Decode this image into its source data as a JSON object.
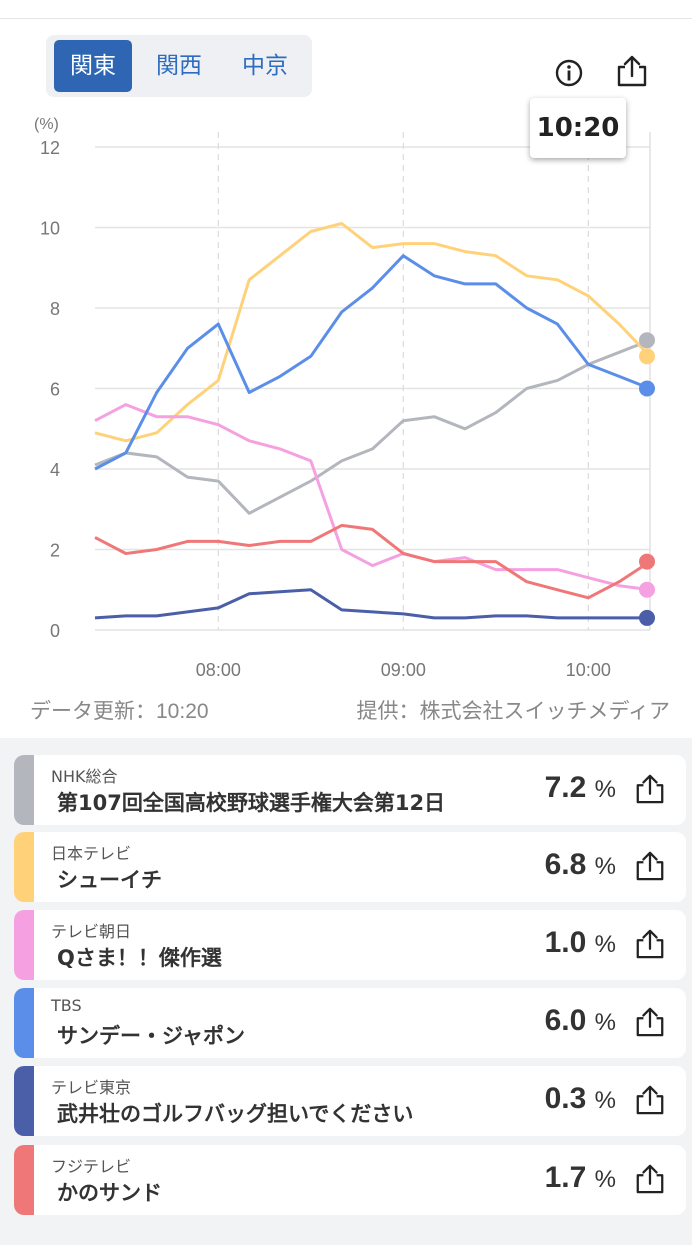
{
  "region_tabs": [
    {
      "label": "関東",
      "active": true
    },
    {
      "label": "関西",
      "active": false
    },
    {
      "label": "中京",
      "active": false
    }
  ],
  "icons": {
    "info": "info-icon",
    "share": "share-icon"
  },
  "tooltip_time": "10:20",
  "chart_data": {
    "type": "line",
    "ylabel": "(%)",
    "ylim": [
      0,
      12
    ],
    "yticks": [
      "0",
      "2",
      "4",
      "6",
      "8",
      "10",
      "12"
    ],
    "xlim": [
      "07:20",
      "10:20"
    ],
    "xticks": [
      "08:00",
      "09:00",
      "10:00"
    ],
    "x": [
      "07:20",
      "07:30",
      "07:40",
      "07:50",
      "08:00",
      "08:10",
      "08:20",
      "08:30",
      "08:40",
      "08:50",
      "09:00",
      "09:10",
      "09:20",
      "09:30",
      "09:40",
      "09:50",
      "10:00",
      "10:10",
      "10:20"
    ],
    "series": [
      {
        "name": "NHK総合",
        "color": "#b3b6bd",
        "values": [
          4.1,
          4.4,
          4.3,
          3.8,
          3.7,
          2.9,
          3.3,
          3.7,
          4.2,
          4.5,
          5.2,
          5.3,
          5.0,
          5.4,
          6.0,
          6.2,
          6.6,
          6.9,
          7.2
        ]
      },
      {
        "name": "日本テレビ",
        "color": "#ffd27a",
        "values": [
          4.9,
          4.7,
          4.9,
          5.6,
          6.2,
          8.7,
          9.3,
          9.9,
          10.1,
          9.5,
          9.6,
          9.6,
          9.4,
          9.3,
          8.8,
          8.7,
          8.3,
          7.6,
          6.8
        ]
      },
      {
        "name": "テレビ朝日",
        "color": "#f5a0e0",
        "values": [
          5.2,
          5.6,
          5.3,
          5.3,
          5.1,
          4.7,
          4.5,
          4.2,
          2.0,
          1.6,
          1.9,
          1.7,
          1.8,
          1.5,
          1.5,
          1.5,
          1.3,
          1.1,
          1.0
        ]
      },
      {
        "name": "TBS",
        "color": "#5b8ee8",
        "values": [
          4.0,
          4.4,
          5.9,
          7.0,
          7.6,
          5.9,
          6.3,
          6.8,
          7.9,
          8.5,
          9.3,
          8.8,
          8.6,
          8.6,
          8.0,
          7.6,
          6.6,
          6.3,
          6.0
        ]
      },
      {
        "name": "テレビ東京",
        "color": "#4a5fa8",
        "values": [
          0.3,
          0.35,
          0.35,
          0.45,
          0.55,
          0.9,
          0.95,
          1.0,
          0.5,
          0.45,
          0.4,
          0.3,
          0.3,
          0.35,
          0.35,
          0.3,
          0.3,
          0.3,
          0.3
        ]
      },
      {
        "name": "フジテレビ",
        "color": "#f07777",
        "values": [
          2.3,
          1.9,
          2.0,
          2.2,
          2.2,
          2.1,
          2.2,
          2.2,
          2.6,
          2.5,
          1.9,
          1.7,
          1.7,
          1.7,
          1.2,
          1.0,
          0.8,
          1.2,
          1.7
        ]
      }
    ]
  },
  "footer": {
    "updated": "データ更新：10:20",
    "provider": "提供：株式会社スイッチメディア"
  },
  "channels": [
    {
      "station": "NHK総合",
      "program": "第107回全国高校野球選手権大会第12日",
      "rating": "7.2",
      "unit": "%",
      "color": "#b3b6bd"
    },
    {
      "station": "日本テレビ",
      "program": "シューイチ",
      "rating": "6.8",
      "unit": "%",
      "color": "#ffd27a"
    },
    {
      "station": "テレビ朝日",
      "program": "Qさま！！傑作選",
      "rating": "1.0",
      "unit": "%",
      "color": "#f5a0e0"
    },
    {
      "station": "TBS",
      "program": "サンデー・ジャポン",
      "rating": "6.0",
      "unit": "%",
      "color": "#5b8ee8"
    },
    {
      "station": "テレビ東京",
      "program": "武井壮のゴルフバッグ担いでください",
      "rating": "0.3",
      "unit": "%",
      "color": "#4a5fa8"
    },
    {
      "station": "フジテレビ",
      "program": "かのサンド",
      "rating": "1.7",
      "unit": "%",
      "color": "#f07777"
    }
  ]
}
